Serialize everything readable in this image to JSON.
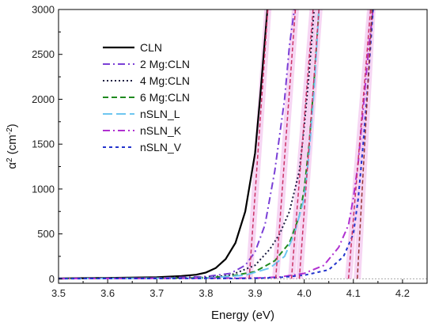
{
  "chart_data": {
    "type": "line",
    "title": "",
    "xlabel": "Energy (eV)",
    "ylabel_main": "α",
    "ylabel_sup": "2",
    "ylabel_unit_open": " (cm",
    "ylabel_unit_sup": "-2",
    "ylabel_unit_close": ")",
    "xlim": [
      3.5,
      4.25
    ],
    "ylim": [
      -50,
      3000
    ],
    "xticks": [
      3.5,
      3.6,
      3.7,
      3.8,
      3.9,
      4.0,
      4.1,
      4.2
    ],
    "xtick_labels": [
      "3.5",
      "3.6",
      "3.7",
      "3.8",
      "3.9",
      "4.0",
      "4.1",
      "4.2"
    ],
    "yticks": [
      0,
      500,
      1000,
      1500,
      2000,
      2500,
      3000
    ],
    "ytick_labels": [
      "0",
      "500",
      "1000",
      "1500",
      "2000",
      "2500",
      "3000"
    ],
    "grid": false,
    "legend_position": "top-left",
    "series": [
      {
        "name": "CLN",
        "color": "#000000",
        "dash": "solid",
        "x": [
          3.5,
          3.6,
          3.7,
          3.75,
          3.78,
          3.8,
          3.82,
          3.84,
          3.86,
          3.88,
          3.9,
          3.91,
          3.925
        ],
        "y": [
          5,
          10,
          18,
          30,
          45,
          70,
          120,
          220,
          400,
          750,
          1400,
          2000,
          3000
        ]
      },
      {
        "name": "2 Mg:CLN",
        "color": "#7a3fd6",
        "dash": "dashdot",
        "x": [
          3.5,
          3.7,
          3.8,
          3.85,
          3.88,
          3.9,
          3.92,
          3.94,
          3.96,
          3.97,
          3.98
        ],
        "y": [
          3,
          8,
          25,
          60,
          150,
          300,
          600,
          1200,
          2000,
          2600,
          3000
        ]
      },
      {
        "name": "4 Mg:CLN",
        "color": "#1a1a40",
        "dash": "dot",
        "x": [
          3.5,
          3.7,
          3.8,
          3.85,
          3.9,
          3.93,
          3.95,
          3.97,
          3.99,
          4.0,
          4.01,
          4.02
        ],
        "y": [
          3,
          6,
          15,
          40,
          150,
          330,
          500,
          750,
          1200,
          1700,
          2300,
          3000
        ]
      },
      {
        "name": "6 Mg:CLN",
        "color": "#1f8a1f",
        "dash": "dash",
        "x": [
          3.5,
          3.8,
          3.85,
          3.9,
          3.94,
          3.97,
          3.99,
          4.0,
          4.01,
          4.02,
          4.03
        ],
        "y": [
          2,
          10,
          30,
          80,
          200,
          400,
          700,
          1000,
          1500,
          2200,
          3000
        ]
      },
      {
        "name": "nSLN_L",
        "color": "#6ec6f0",
        "dash": "longdash",
        "x": [
          3.5,
          3.8,
          3.88,
          3.93,
          3.96,
          3.98,
          4.0,
          4.01,
          4.02,
          4.03
        ],
        "y": [
          2,
          8,
          40,
          120,
          250,
          500,
          900,
          1400,
          2100,
          3000
        ]
      },
      {
        "name": "nSLN_K",
        "color": "#b030d0",
        "dash": "dashdot",
        "x": [
          3.5,
          3.9,
          3.95,
          4.0,
          4.04,
          4.07,
          4.09,
          4.1,
          4.11,
          4.12,
          4.13,
          4.14
        ],
        "y": [
          2,
          8,
          20,
          60,
          150,
          350,
          600,
          900,
          1300,
          1900,
          2500,
          3000
        ]
      },
      {
        "name": "nSLN_V",
        "color": "#2233cc",
        "dash": "shortdash",
        "x": [
          3.5,
          3.9,
          3.95,
          4.0,
          4.05,
          4.08,
          4.1,
          4.11,
          4.12,
          4.13,
          4.14
        ],
        "y": [
          2,
          5,
          15,
          40,
          100,
          250,
          500,
          900,
          1500,
          2200,
          3000
        ]
      }
    ],
    "fit_lines": [
      {
        "color": "#cc3366",
        "x": [
          3.888,
          3.926
        ],
        "y": [
          0,
          3000
        ]
      },
      {
        "color": "#cc3366",
        "x": [
          3.942,
          3.982
        ],
        "y": [
          0,
          3000
        ]
      },
      {
        "color": "#cc3366",
        "x": [
          3.974,
          4.018
        ],
        "y": [
          0,
          3000
        ]
      },
      {
        "color": "#cc3366",
        "x": [
          3.99,
          4.03
        ],
        "y": [
          0,
          3000
        ]
      },
      {
        "color": "#cc3366",
        "x": [
          4.09,
          4.135
        ],
        "y": [
          0,
          3000
        ]
      },
      {
        "color": "#993333",
        "x": [
          4.108,
          4.138
        ],
        "y": [
          0,
          3000
        ]
      }
    ],
    "baseline": {
      "color": "#aaaaaa",
      "x": [
        3.5,
        4.25
      ],
      "y": [
        0,
        0
      ]
    }
  }
}
